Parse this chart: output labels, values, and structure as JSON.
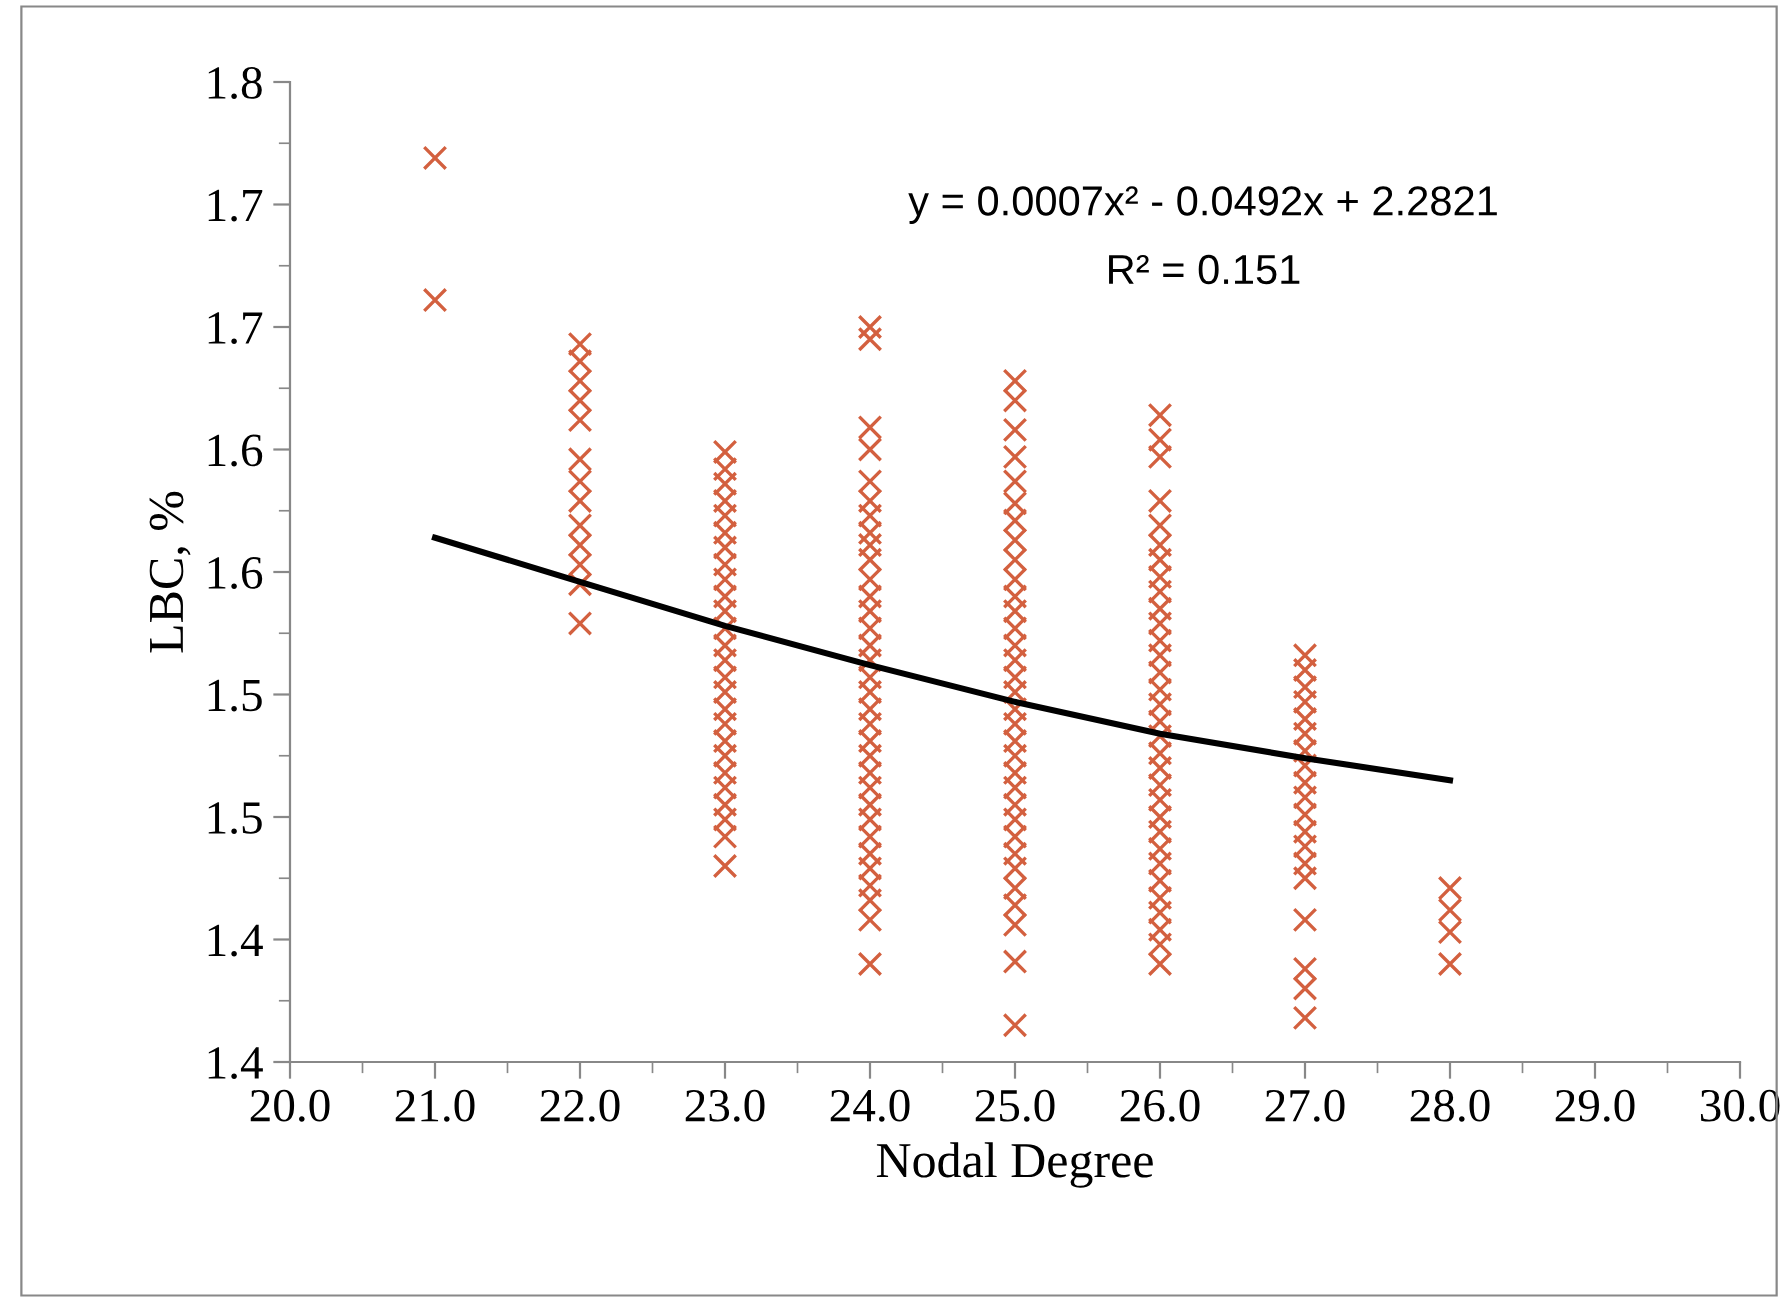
{
  "chart_data": {
    "type": "scatter",
    "xlabel": "Nodal Degree",
    "ylabel": "LBC, %",
    "xlim": [
      20,
      30
    ],
    "ylim": [
      1.4,
      1.8
    ],
    "xticks": [
      {
        "value": 20,
        "label": "20.0"
      },
      {
        "value": 21,
        "label": "21.0"
      },
      {
        "value": 22,
        "label": "22.0"
      },
      {
        "value": 23,
        "label": "23.0"
      },
      {
        "value": 24,
        "label": "24.0"
      },
      {
        "value": 25,
        "label": "25.0"
      },
      {
        "value": 26,
        "label": "26.0"
      },
      {
        "value": 27,
        "label": "27.0"
      },
      {
        "value": 28,
        "label": "28.0"
      },
      {
        "value": 29,
        "label": "29.0"
      },
      {
        "value": 30,
        "label": "30.0"
      }
    ],
    "yticks": [
      {
        "value": 1.4,
        "label": "1.4"
      },
      {
        "value": 1.45,
        "label": "1.4"
      },
      {
        "value": 1.5,
        "label": "1.5"
      },
      {
        "value": 1.55,
        "label": "1.5"
      },
      {
        "value": 1.6,
        "label": "1.6"
      },
      {
        "value": 1.65,
        "label": "1.6"
      },
      {
        "value": 1.7,
        "label": "1.7"
      },
      {
        "value": 1.75,
        "label": "1.7"
      },
      {
        "value": 1.8,
        "label": "1.8"
      }
    ],
    "grid": false,
    "legend": false,
    "annotations": [
      "y = 0.0007x² - 0.0492x + 2.2821",
      "R² = 0.151"
    ],
    "series": [
      {
        "color": "#d3603f",
        "marker": "cross",
        "x": [
          21,
          21,
          22,
          22,
          22,
          22,
          22,
          22,
          22,
          22,
          22,
          22,
          22,
          22,
          22,
          23,
          23,
          23,
          23,
          23,
          23,
          23,
          23,
          23,
          23,
          23,
          23,
          23,
          23,
          23,
          23,
          23,
          23,
          23,
          23,
          23,
          23,
          23,
          23,
          23,
          23,
          24,
          24,
          24,
          24,
          24,
          24,
          24,
          24,
          24,
          24,
          24,
          24,
          24,
          24,
          24,
          24,
          24,
          24,
          24,
          24,
          24,
          24,
          24,
          24,
          24,
          24,
          24,
          24,
          24,
          24,
          24,
          24,
          24,
          25,
          25,
          25,
          25,
          25,
          25,
          25,
          25,
          25,
          25,
          25,
          25,
          25,
          25,
          25,
          25,
          25,
          25,
          25,
          25,
          25,
          25,
          25,
          25,
          25,
          25,
          25,
          25,
          25,
          25,
          25,
          25,
          25,
          26,
          26,
          26,
          26,
          26,
          26,
          26,
          26,
          26,
          26,
          26,
          26,
          26,
          26,
          26,
          26,
          26,
          26,
          26,
          26,
          26,
          26,
          26,
          26,
          26,
          26,
          26,
          26,
          26,
          26,
          26,
          26,
          27,
          27,
          27,
          27,
          27,
          27,
          27,
          27,
          27,
          27,
          27,
          27,
          27,
          27,
          27,
          27,
          27,
          27,
          27,
          28,
          28,
          28,
          28
        ],
        "values": [
          1.769,
          1.711,
          1.693,
          1.686,
          1.678,
          1.67,
          1.662,
          1.646,
          1.637,
          1.629,
          1.619,
          1.611,
          1.603,
          1.595,
          1.579,
          1.649,
          1.642,
          1.636,
          1.629,
          1.623,
          1.616,
          1.61,
          1.603,
          1.597,
          1.59,
          1.584,
          1.577,
          1.57,
          1.564,
          1.557,
          1.551,
          1.544,
          1.538,
          1.531,
          1.525,
          1.518,
          1.512,
          1.505,
          1.499,
          1.492,
          1.48,
          1.7,
          1.695,
          1.659,
          1.65,
          1.637,
          1.629,
          1.623,
          1.616,
          1.611,
          1.605,
          1.597,
          1.59,
          1.584,
          1.577,
          1.57,
          1.564,
          1.557,
          1.551,
          1.544,
          1.538,
          1.531,
          1.525,
          1.518,
          1.512,
          1.505,
          1.499,
          1.492,
          1.485,
          1.479,
          1.472,
          1.466,
          1.458,
          1.44,
          1.678,
          1.67,
          1.658,
          1.647,
          1.637,
          1.628,
          1.621,
          1.613,
          1.605,
          1.597,
          1.59,
          1.584,
          1.577,
          1.57,
          1.564,
          1.557,
          1.551,
          1.544,
          1.538,
          1.531,
          1.525,
          1.518,
          1.512,
          1.505,
          1.499,
          1.492,
          1.485,
          1.479,
          1.471,
          1.464,
          1.456,
          1.441,
          1.415,
          1.664,
          1.654,
          1.647,
          1.629,
          1.619,
          1.611,
          1.605,
          1.598,
          1.592,
          1.585,
          1.579,
          1.572,
          1.566,
          1.559,
          1.552,
          1.546,
          1.539,
          1.533,
          1.526,
          1.52,
          1.513,
          1.507,
          1.5,
          1.494,
          1.487,
          1.481,
          1.474,
          1.467,
          1.461,
          1.454,
          1.448,
          1.44,
          1.566,
          1.56,
          1.553,
          1.547,
          1.54,
          1.534,
          1.527,
          1.521,
          1.514,
          1.508,
          1.501,
          1.494,
          1.488,
          1.481,
          1.475,
          1.458,
          1.438,
          1.43,
          1.418,
          1.471,
          1.462,
          1.453,
          1.44
        ]
      },
      {
        "type": "line",
        "color": "#000000",
        "marker": "none",
        "x": [
          21,
          22,
          23,
          24,
          25,
          26,
          27,
          28
        ],
        "values": [
          1.614,
          1.596,
          1.578,
          1.562,
          1.547,
          1.534,
          1.524,
          1.515
        ]
      }
    ]
  }
}
